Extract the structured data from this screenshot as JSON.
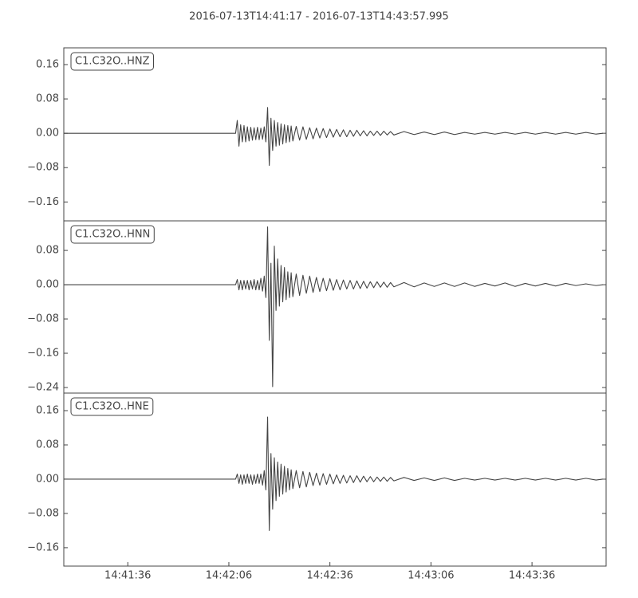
{
  "title": "2016-07-13T14:41:17  -  2016-07-13T14:43:57.995",
  "chart_data": [
    {
      "type": "line",
      "x": [
        52877,
        52900,
        52928,
        52928.5,
        52929,
        52929.5,
        52930,
        52930.5,
        52931,
        52931.5,
        52932,
        52932.5,
        52933,
        52933.5,
        52934,
        52934.5,
        52935,
        52935.5,
        52936,
        52936.5,
        52937,
        52937.5,
        52938,
        52938.5,
        52939,
        52939.5,
        52940,
        52940.5,
        52941,
        52941.5,
        52942,
        52942.5,
        52943,
        52943.5,
        52944,
        52944.5,
        52945,
        52946,
        52947,
        52948,
        52949,
        52950,
        52951,
        52952,
        52953,
        52954,
        52955,
        52956,
        52957,
        52958,
        52959,
        52960,
        52961,
        52962,
        52963,
        52964,
        52965,
        52966,
        52967,
        52968,
        52969,
        52970,
        52971,
        52972,
        52973,
        52974,
        52975,
        52978,
        52981,
        52984,
        52987,
        52990,
        52993,
        52996,
        52999,
        53002,
        53005,
        53008,
        53011,
        53014,
        53017,
        53020,
        53023,
        53026,
        53029,
        53032,
        53035,
        53037
      ],
      "series": [
        {
          "name": "C1.C32O..HNZ",
          "color": "#444444",
          "values": [
            0,
            0,
            0,
            0.03,
            -0.03,
            0.02,
            -0.02,
            0.018,
            -0.02,
            0.015,
            -0.018,
            0.014,
            -0.016,
            0.013,
            -0.015,
            0.014,
            -0.015,
            0.012,
            -0.014,
            0.015,
            -0.02,
            0.06,
            -0.075,
            0.035,
            -0.04,
            0.03,
            -0.03,
            0.025,
            -0.028,
            0.022,
            -0.025,
            0.02,
            -0.022,
            0.018,
            -0.02,
            0.017,
            -0.018,
            0.016,
            -0.016,
            0.015,
            -0.014,
            0.013,
            -0.013,
            0.012,
            -0.011,
            0.011,
            -0.01,
            0.01,
            -0.009,
            0.009,
            -0.008,
            0.008,
            -0.008,
            0.007,
            -0.007,
            0.007,
            -0.006,
            0.006,
            -0.006,
            0.005,
            -0.005,
            0.005,
            -0.005,
            0.005,
            -0.004,
            0.004,
            -0.004,
            0.004,
            -0.003,
            0.003,
            -0.003,
            0.003,
            -0.003,
            0.002,
            -0.002,
            0.002,
            -0.002,
            0.002,
            -0.002,
            0.002,
            -0.002,
            0.002,
            -0.002,
            0.002,
            -0.002,
            0.002,
            -0.002,
            0
          ]
        }
      ],
      "xlim": [
        52877,
        53037.995
      ],
      "ylim": [
        -0.204,
        0.199
      ],
      "yticks": [
        {
          "value": -0.16,
          "label": "−0.16"
        },
        {
          "value": -0.08,
          "label": "−0.08"
        },
        {
          "value": 0,
          "label": "0.00"
        },
        0.08,
        0.16
      ]
    },
    {
      "type": "line",
      "x": [
        52877,
        52900,
        52928,
        52928.5,
        52929,
        52929.5,
        52930,
        52930.5,
        52931,
        52931.5,
        52932,
        52932.5,
        52933,
        52933.5,
        52934,
        52934.5,
        52935,
        52935.5,
        52936,
        52936.5,
        52937,
        52937.5,
        52938,
        52938.5,
        52939,
        52939.5,
        52940,
        52940.5,
        52941,
        52941.5,
        52942,
        52942.5,
        52943,
        52943.5,
        52944,
        52944.5,
        52945,
        52946,
        52947,
        52948,
        52949,
        52950,
        52951,
        52952,
        52953,
        52954,
        52955,
        52956,
        52957,
        52958,
        52959,
        52960,
        52961,
        52962,
        52963,
        52964,
        52965,
        52966,
        52967,
        52968,
        52969,
        52970,
        52971,
        52972,
        52973,
        52974,
        52975,
        52978,
        52981,
        52984,
        52987,
        52990,
        52993,
        52996,
        52999,
        53002,
        53005,
        53008,
        53011,
        53014,
        53017,
        53020,
        53023,
        53026,
        53029,
        53032,
        53035,
        53037
      ],
      "series": [
        {
          "name": "C1.C32O..HNN",
          "color": "#444444",
          "values": [
            0,
            0,
            0,
            0.012,
            -0.012,
            0.01,
            -0.012,
            0.01,
            -0.01,
            0.01,
            -0.012,
            0.01,
            -0.01,
            0.012,
            -0.012,
            0.01,
            -0.012,
            0.015,
            -0.015,
            0.02,
            -0.03,
            0.135,
            -0.13,
            0.05,
            -0.238,
            0.09,
            -0.06,
            0.06,
            -0.05,
            0.045,
            -0.04,
            0.04,
            -0.035,
            0.03,
            -0.03,
            0.028,
            -0.028,
            0.025,
            -0.025,
            0.022,
            -0.02,
            0.02,
            -0.018,
            0.017,
            -0.016,
            0.015,
            -0.014,
            0.014,
            -0.013,
            0.012,
            -0.012,
            0.011,
            -0.01,
            0.01,
            -0.01,
            0.009,
            -0.009,
            0.008,
            -0.008,
            0.007,
            -0.007,
            0.007,
            -0.006,
            0.006,
            -0.006,
            0.005,
            -0.005,
            0.005,
            -0.005,
            0.004,
            -0.004,
            0.004,
            -0.004,
            0.004,
            -0.004,
            0.003,
            -0.003,
            0.004,
            -0.004,
            0.003,
            -0.003,
            0.003,
            -0.003,
            0.003,
            -0.002,
            0.002,
            -0.002,
            0
          ]
        }
      ],
      "xlim": [
        52877,
        53037.995
      ],
      "ylim": [
        -0.253,
        0.149
      ],
      "yticks": [
        {
          "value": -0.24,
          "label": "−0.24"
        },
        {
          "value": -0.16,
          "label": "−0.16"
        },
        {
          "value": -0.08,
          "label": "−0.08"
        },
        {
          "value": 0,
          "label": "0.00"
        },
        0.08
      ]
    },
    {
      "type": "line",
      "x": [
        52877,
        52900,
        52928,
        52928.5,
        52929,
        52929.5,
        52930,
        52930.5,
        52931,
        52931.5,
        52932,
        52932.5,
        52933,
        52933.5,
        52934,
        52934.5,
        52935,
        52935.5,
        52936,
        52936.5,
        52937,
        52937.5,
        52938,
        52938.5,
        52939,
        52939.5,
        52940,
        52940.5,
        52941,
        52941.5,
        52942,
        52942.5,
        52943,
        52943.5,
        52944,
        52944.5,
        52945,
        52946,
        52947,
        52948,
        52949,
        52950,
        52951,
        52952,
        52953,
        52954,
        52955,
        52956,
        52957,
        52958,
        52959,
        52960,
        52961,
        52962,
        52963,
        52964,
        52965,
        52966,
        52967,
        52968,
        52969,
        52970,
        52971,
        52972,
        52973,
        52974,
        52975,
        52978,
        52981,
        52984,
        52987,
        52990,
        52993,
        52996,
        52999,
        53002,
        53005,
        53008,
        53011,
        53014,
        53017,
        53020,
        53023,
        53026,
        53029,
        53032,
        53035,
        53037
      ],
      "series": [
        {
          "name": "C1.C32O..HNE",
          "color": "#444444",
          "values": [
            0,
            0,
            0,
            0.012,
            -0.01,
            0.01,
            -0.012,
            0.01,
            -0.01,
            0.012,
            -0.01,
            0.01,
            -0.012,
            0.01,
            -0.01,
            0.012,
            -0.01,
            0.012,
            -0.014,
            0.02,
            -0.025,
            0.145,
            -0.12,
            0.06,
            -0.07,
            0.05,
            -0.05,
            0.04,
            -0.04,
            0.035,
            -0.035,
            0.03,
            -0.03,
            0.025,
            -0.025,
            0.022,
            -0.022,
            0.02,
            -0.02,
            0.018,
            -0.018,
            0.016,
            -0.015,
            0.014,
            -0.014,
            0.013,
            -0.012,
            0.012,
            -0.011,
            0.01,
            -0.01,
            0.009,
            -0.009,
            0.008,
            -0.008,
            0.008,
            -0.007,
            0.007,
            -0.006,
            0.006,
            -0.006,
            0.005,
            -0.005,
            0.005,
            -0.005,
            0.004,
            -0.004,
            0.004,
            -0.003,
            0.003,
            -0.003,
            0.003,
            -0.003,
            0.002,
            -0.002,
            0.002,
            -0.002,
            0.002,
            -0.002,
            0.002,
            -0.002,
            0.002,
            -0.002,
            0.002,
            -0.002,
            0.002,
            -0.002,
            0
          ]
        }
      ],
      "xlim": [
        52877,
        53037.995
      ],
      "ylim": [
        -0.203,
        0.201
      ],
      "yticks": [
        {
          "value": -0.16,
          "label": "−0.16"
        },
        {
          "value": -0.08,
          "label": "−0.08"
        },
        {
          "value": 0,
          "label": "0.00"
        },
        0.08,
        0.16
      ],
      "xticks": [
        {
          "value": 52896,
          "label": "14:41:36"
        },
        {
          "value": 52926,
          "label": "14:42:06"
        },
        {
          "value": 52956,
          "label": "14:42:36"
        },
        {
          "value": 52986,
          "label": "14:43:06"
        },
        {
          "value": 53016,
          "label": "14:43:36"
        }
      ]
    }
  ]
}
